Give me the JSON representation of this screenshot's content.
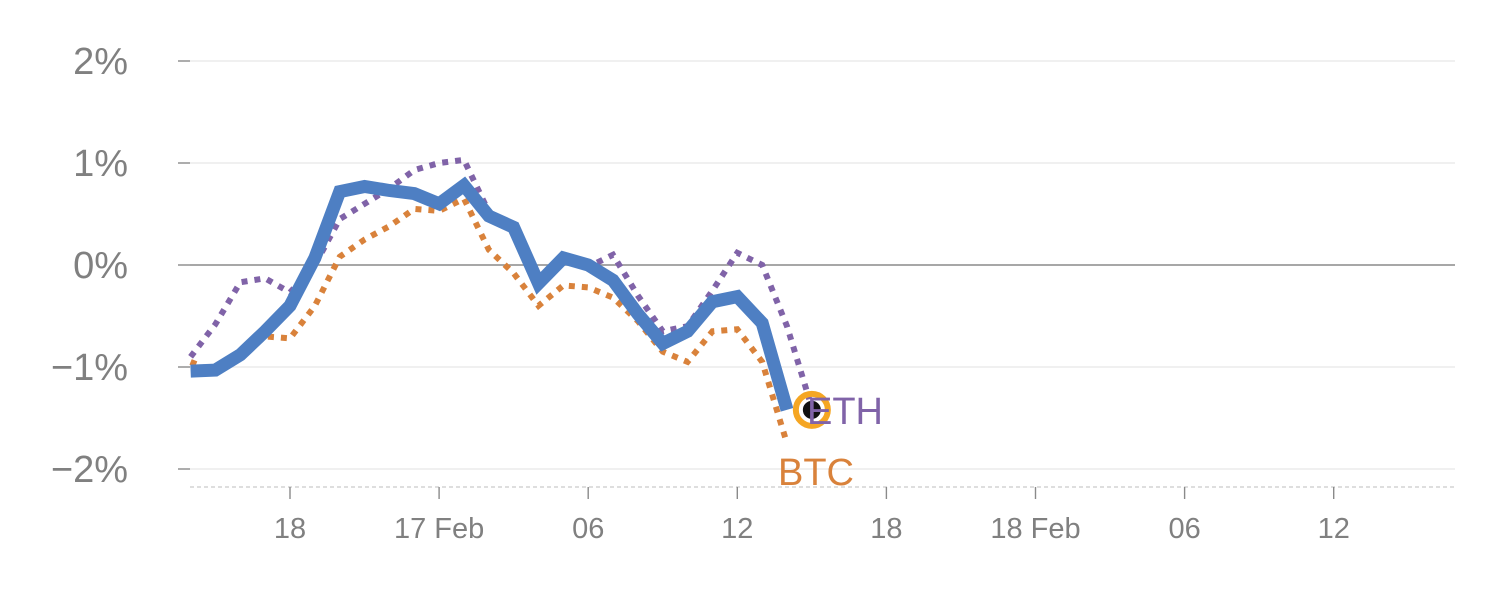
{
  "chart_data": {
    "type": "line",
    "title": "",
    "xlabel": "",
    "ylabel": "",
    "ylim": [
      -2.2,
      2.0
    ],
    "xlim": [
      "2024-02-16T13:00",
      "2024-02-18T18:00"
    ],
    "grid": true,
    "y_ticks": [
      {
        "value": 2,
        "label": "2%"
      },
      {
        "value": 1,
        "label": "1%"
      },
      {
        "value": 0,
        "label": "0%"
      },
      {
        "value": -1,
        "label": "−1%"
      },
      {
        "value": -2,
        "label": "−2%"
      }
    ],
    "x_ticks": [
      {
        "value": "2024-02-16T18:00",
        "label": "18"
      },
      {
        "value": "2024-02-17T00:00",
        "label": "17 Feb"
      },
      {
        "value": "2024-02-17T06:00",
        "label": "06"
      },
      {
        "value": "2024-02-17T12:00",
        "label": "12"
      },
      {
        "value": "2024-02-17T18:00",
        "label": "18"
      },
      {
        "value": "2024-02-18T00:00",
        "label": "18 Feb"
      },
      {
        "value": "2024-02-18T06:00",
        "label": "06"
      },
      {
        "value": "2024-02-18T12:00",
        "label": "12"
      }
    ],
    "x": [
      "2024-02-16T14:00",
      "2024-02-16T15:00",
      "2024-02-16T16:00",
      "2024-02-16T17:00",
      "2024-02-16T18:00",
      "2024-02-16T19:00",
      "2024-02-16T20:00",
      "2024-02-16T21:00",
      "2024-02-16T22:00",
      "2024-02-16T23:00",
      "2024-02-17T00:00",
      "2024-02-17T01:00",
      "2024-02-17T02:00",
      "2024-02-17T03:00",
      "2024-02-17T04:00",
      "2024-02-17T05:00",
      "2024-02-17T06:00",
      "2024-02-17T07:00",
      "2024-02-17T08:00",
      "2024-02-17T09:00",
      "2024-02-17T10:00",
      "2024-02-17T11:00",
      "2024-02-17T12:00",
      "2024-02-17T13:00",
      "2024-02-17T14:00",
      "2024-02-17T15:00"
    ],
    "series": [
      {
        "name": "",
        "color": "#4e7fc3",
        "style": "solid",
        "values": [
          -1.04,
          -1.03,
          -0.88,
          -0.65,
          -0.4,
          0.07,
          0.72,
          0.77,
          0.73,
          0.7,
          0.6,
          0.78,
          0.48,
          0.37,
          -0.18,
          0.07,
          0.0,
          -0.15,
          -0.48,
          -0.77,
          -0.65,
          -0.36,
          -0.31,
          -0.57,
          -1.42,
          null
        ]
      },
      {
        "name": "ETH",
        "color": "#8063a8",
        "style": "dotted",
        "values": [
          -0.9,
          -0.58,
          -0.17,
          -0.13,
          -0.27,
          0.0,
          0.45,
          0.6,
          0.75,
          0.93,
          1.0,
          1.03,
          0.52,
          0.33,
          -0.15,
          0.05,
          -0.02,
          0.1,
          -0.3,
          -0.65,
          -0.6,
          -0.25,
          0.12,
          0.0,
          -0.6,
          -1.4
        ]
      },
      {
        "name": "BTC",
        "color": "#d9823b",
        "style": "dotted",
        "values": [
          -0.95,
          -1.05,
          -0.9,
          -0.7,
          -0.72,
          -0.4,
          0.08,
          0.25,
          0.38,
          0.55,
          0.53,
          0.65,
          0.15,
          -0.08,
          -0.4,
          -0.2,
          -0.22,
          -0.32,
          -0.55,
          -0.85,
          -0.95,
          -0.65,
          -0.63,
          -0.95,
          -1.75,
          null
        ]
      }
    ],
    "end_marker": {
      "x": "2024-02-17T15:00",
      "y": -1.42,
      "ring_color": "#f5a623",
      "fill": "#111111"
    }
  }
}
